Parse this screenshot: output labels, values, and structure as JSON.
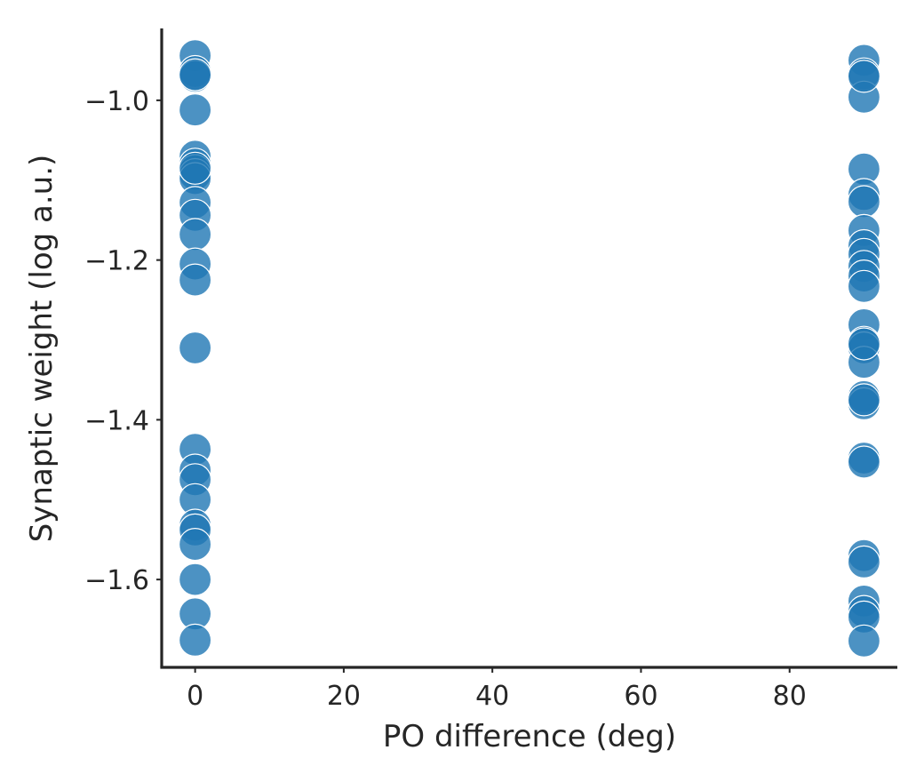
{
  "chart_data": {
    "type": "scatter",
    "title": "",
    "xlabel": "PO difference (deg)",
    "ylabel": "Synaptic weight (log a.u.)",
    "xlim": [
      -4.5,
      94.5
    ],
    "ylim": [
      -1.71,
      -0.91
    ],
    "xticks": [
      0,
      20,
      40,
      60,
      80
    ],
    "yticks": [
      -1.0,
      -1.2,
      -1.4,
      -1.6
    ],
    "xtick_labels": [
      "0",
      "20",
      "40",
      "60",
      "80"
    ],
    "ytick_labels": [
      "−1.0",
      "−1.2",
      "−1.4",
      "−1.6"
    ],
    "grid": false,
    "point_color": "#1f77b4",
    "series": [
      {
        "x": [
          0,
          0,
          0,
          0,
          0,
          0,
          0,
          0,
          0,
          0,
          0,
          0,
          0,
          0,
          0,
          0,
          0,
          0,
          0,
          0,
          0,
          0,
          0,
          0,
          0,
          0,
          0
        ],
        "y": [
          -0.944,
          -0.964,
          -0.97,
          -1.012,
          -1.07,
          -1.08,
          -1.088,
          -1.093,
          -1.098,
          -1.128,
          -1.144,
          -1.168,
          -1.205,
          -1.225,
          -1.31,
          -1.437,
          -1.463,
          -1.475,
          -1.5,
          -1.532,
          -1.538,
          -1.556,
          -1.6,
          -1.643,
          -1.676,
          -0.968,
          -1.085
        ]
      },
      {
        "x": [
          90,
          90,
          90,
          90,
          90,
          90,
          90,
          90,
          90,
          90,
          90,
          90,
          90,
          90,
          90,
          90,
          90,
          90,
          90,
          90,
          90,
          90,
          90,
          90,
          90,
          90,
          90,
          90,
          90
        ],
        "y": [
          -0.95,
          -0.967,
          -0.996,
          -1.086,
          -1.118,
          -1.127,
          -1.163,
          -1.182,
          -1.193,
          -1.208,
          -1.22,
          -1.233,
          -1.281,
          -1.303,
          -1.31,
          -1.328,
          -1.371,
          -1.38,
          -1.448,
          -1.453,
          -1.57,
          -1.578,
          -1.627,
          -1.64,
          -1.647,
          -1.677,
          -0.97,
          -1.305,
          -1.375
        ]
      }
    ]
  }
}
